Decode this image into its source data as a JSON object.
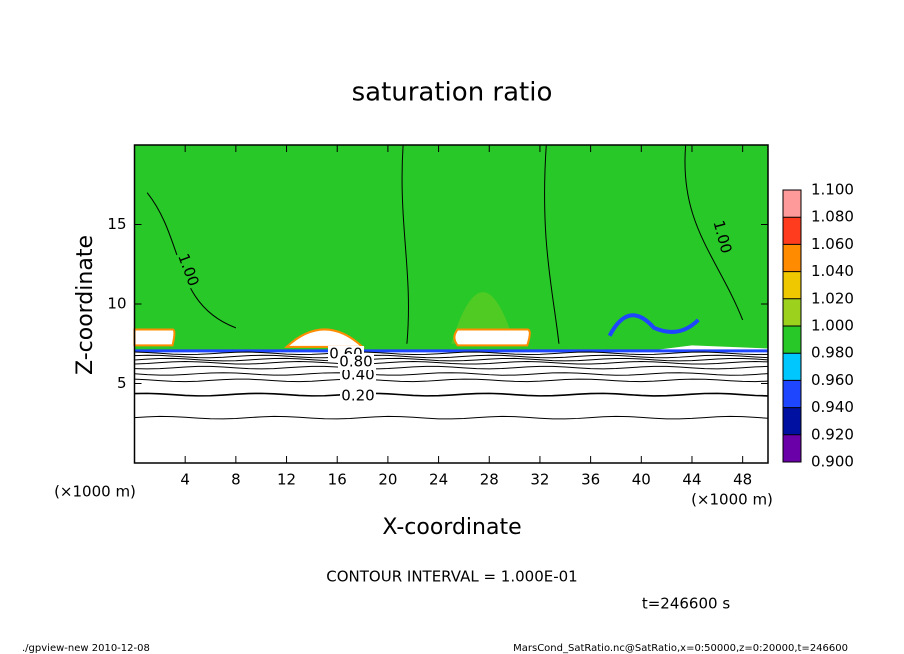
{
  "chart_data": {
    "type": "contour",
    "title": "saturation ratio",
    "xlabel": "X-coordinate",
    "ylabel": "Z-coordinate",
    "xunit": "(×1000 m)",
    "xunit2": "(×1000 m)",
    "xlim": [
      0,
      50
    ],
    "ylim": [
      0,
      20
    ],
    "xticks": [
      4,
      8,
      12,
      16,
      20,
      24,
      28,
      32,
      36,
      40,
      44,
      48
    ],
    "yticks": [
      5,
      10,
      15
    ],
    "contour_levels": [
      0.1,
      0.2,
      0.3,
      0.4,
      0.5,
      0.6,
      0.7,
      0.8,
      0.9
    ],
    "contour_labels": [
      {
        "value": 0.2,
        "label": "0.20"
      },
      {
        "value": 0.4,
        "label": "0.40"
      },
      {
        "value": 0.6,
        "label": "0.60"
      },
      {
        "value": 0.8,
        "label": "0.80"
      },
      {
        "value": 1.0,
        "label": "1.00"
      },
      {
        "value": 1.0,
        "label": "1.00"
      }
    ],
    "colorbar": {
      "levels": [
        {
          "value": 0.9,
          "label": "0.900"
        },
        {
          "value": 0.92,
          "label": "0.920"
        },
        {
          "value": 0.94,
          "label": "0.940"
        },
        {
          "value": 0.96,
          "label": "0.960"
        },
        {
          "value": 0.98,
          "label": "0.980"
        },
        {
          "value": 1.0,
          "label": "1.000"
        },
        {
          "value": 1.02,
          "label": "1.020"
        },
        {
          "value": 1.04,
          "label": "1.040"
        },
        {
          "value": 1.06,
          "label": "1.060"
        },
        {
          "value": 1.08,
          "label": "1.080"
        },
        {
          "value": 1.1,
          "label": "1.100"
        }
      ],
      "colors": [
        "#6a00a8",
        "#0010a0",
        "#1e46ff",
        "#00c8ff",
        "#28c828",
        "#9cd21e",
        "#f0c800",
        "#ff8c00",
        "#ff3c1e",
        "#ff9a9a"
      ]
    },
    "interval_text": "CONTOUR INTERVAL = 1.000E-01",
    "time_text": "t=246600 s",
    "footer_left": "./gpview-new   2010-12-08",
    "footer_right": "MarsCond_SatRatio.nc@SatRatio,x=0:50000,z=0:20000,t=246600"
  }
}
